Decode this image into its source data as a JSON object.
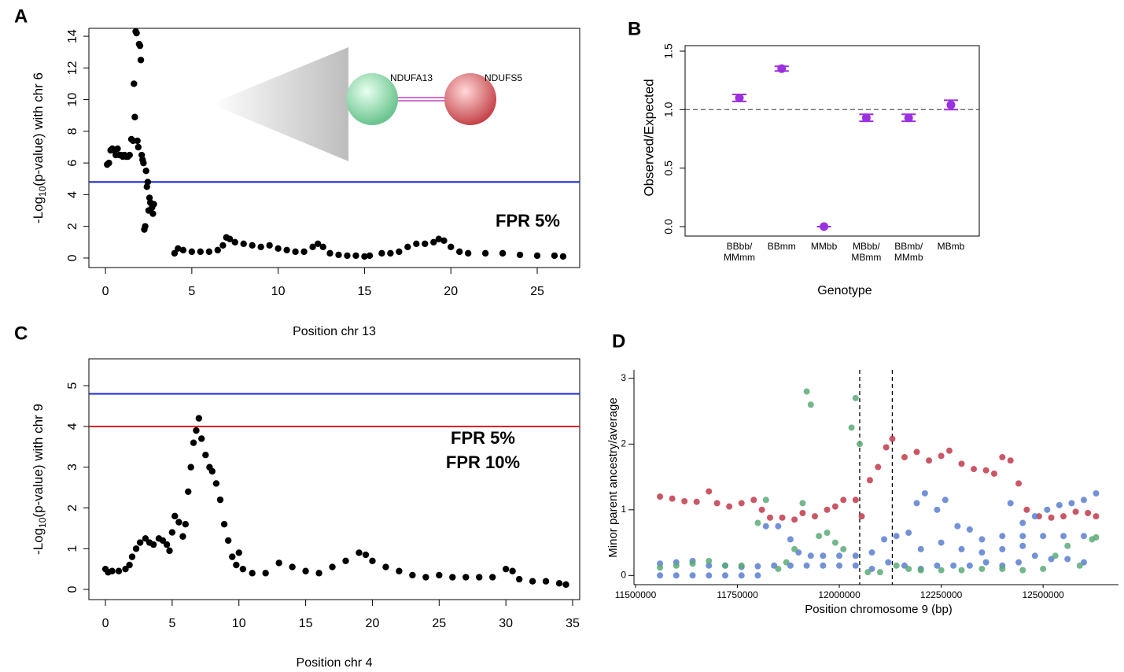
{
  "chart_data": [
    {
      "type": "scatter",
      "panel": "A",
      "xlabel": "Position chr 13",
      "ylabel": [
        "-Log",
        "10",
        "(p-value) with chr 6"
      ],
      "xlim": [
        -0.96,
        27.46
      ],
      "ylim": [
        -0.6,
        14.5
      ],
      "xticks": [
        0,
        5,
        10,
        15,
        20,
        25
      ],
      "yticks": [
        0,
        2,
        4,
        6,
        8,
        10,
        12,
        14
      ],
      "color": "#000000",
      "x": [
        0.1,
        0.2,
        0.3,
        0.4,
        0.5,
        0.6,
        0.7,
        0.8,
        0.9,
        1.0,
        1.1,
        1.2,
        1.3,
        1.4,
        1.5,
        1.6,
        1.65,
        1.7,
        1.75,
        1.8,
        1.85,
        1.9,
        1.95,
        2.0,
        2.05,
        2.1,
        2.15,
        2.2,
        2.25,
        2.3,
        2.35,
        2.4,
        2.45,
        2.5,
        2.55,
        2.6,
        2.7,
        2.75,
        2.8,
        4.0,
        4.2,
        4.5,
        5.0,
        5.5,
        6.0,
        6.5,
        6.8,
        7.0,
        7.2,
        7.5,
        8.0,
        8.5,
        9.0,
        9.5,
        10.0,
        10.5,
        11.0,
        11.5,
        12.0,
        12.3,
        12.6,
        13.0,
        13.5,
        14.0,
        14.5,
        15.0,
        15.3,
        16.0,
        16.5,
        17.0,
        17.5,
        18.0,
        18.5,
        19.0,
        19.3,
        19.6,
        20.0,
        20.5,
        21.0,
        22.0,
        23.0,
        24.0,
        25.0,
        26.0,
        26.5
      ],
      "values": [
        5.9,
        6.0,
        6.8,
        6.9,
        6.8,
        6.5,
        6.9,
        6.5,
        6.5,
        6.4,
        6.5,
        6.4,
        6.4,
        6.5,
        7.5,
        7.4,
        11.0,
        8.9,
        14.3,
        14.2,
        7.4,
        7.0,
        13.5,
        13.4,
        12.5,
        6.5,
        6.2,
        6.0,
        1.8,
        2.0,
        5.5,
        4.5,
        4.8,
        3.0,
        3.8,
        3.5,
        3.2,
        2.8,
        3.4,
        0.3,
        0.6,
        0.5,
        0.4,
        0.4,
        0.4,
        0.5,
        0.8,
        1.3,
        1.2,
        1.0,
        0.9,
        0.8,
        0.7,
        0.8,
        0.6,
        0.5,
        0.4,
        0.4,
        0.7,
        0.9,
        0.7,
        0.3,
        0.2,
        0.15,
        0.15,
        0.1,
        0.15,
        0.3,
        0.3,
        0.4,
        0.7,
        0.9,
        0.9,
        1.0,
        1.2,
        1.1,
        0.7,
        0.4,
        0.3,
        0.3,
        0.3,
        0.2,
        0.15,
        0.15,
        0.1
      ],
      "hlines": [
        {
          "value": 4.8,
          "color": "#1d22dd",
          "label": "FPR 5%"
        }
      ],
      "inset": {
        "nodes": [
          "NDUFA13",
          "NDUFS5"
        ]
      }
    },
    {
      "type": "errorbar",
      "panel": "B",
      "xlabel": "Genotype",
      "ylabel": "Observed/Expected",
      "ylim": [
        -0.081,
        1.547
      ],
      "yticks": [
        {
          "value": 0,
          "label": "0.0"
        },
        0.5,
        {
          "value": 1,
          "label": "1.0"
        },
        1.5
      ],
      "categories": [
        [
          "BBbb/",
          "MMmm"
        ],
        [
          "BBmm"
        ],
        [
          "MMbb"
        ],
        [
          "MBbb/",
          "MBmm"
        ],
        [
          "BBmb/",
          "MMmb"
        ],
        [
          "MBmb"
        ]
      ],
      "values": [
        1.1,
        1.35,
        0.0,
        0.93,
        0.93,
        1.04
      ],
      "errors": [
        0.03,
        0.02,
        0,
        0.03,
        0.03,
        0.04
      ],
      "color": "#9b30e0",
      "reference_line": 1
    },
    {
      "type": "scatter",
      "panel": "C",
      "xlabel": "Position chr 4",
      "ylabel": [
        "-Log",
        "10",
        "(p-value) with chr 9"
      ],
      "xlim": [
        -1.24,
        35.53
      ],
      "ylim": [
        -0.25,
        5.66
      ],
      "xticks": [
        0,
        5,
        10,
        15,
        20,
        25,
        30,
        35
      ],
      "yticks": [
        0,
        1,
        2,
        3,
        4,
        5
      ],
      "color": "#000000",
      "x": [
        0,
        0.2,
        0.5,
        1,
        1.5,
        1.8,
        2,
        2.3,
        2.6,
        3,
        3.3,
        3.6,
        4,
        4.3,
        4.6,
        4.8,
        5,
        5.2,
        5.5,
        5.8,
        6,
        6.2,
        6.4,
        6.6,
        6.8,
        7,
        7.2,
        7.5,
        7.8,
        8,
        8.3,
        8.6,
        8.9,
        9.2,
        9.5,
        9.8,
        10,
        10.3,
        11,
        12,
        13,
        14,
        15,
        16,
        17,
        18,
        19,
        19.5,
        20,
        21,
        22,
        23,
        24,
        25,
        26,
        27,
        28,
        29,
        30,
        30.5,
        31,
        32,
        33,
        34,
        34.5
      ],
      "values": [
        0.5,
        0.42,
        0.45,
        0.45,
        0.5,
        0.6,
        0.8,
        1.0,
        1.15,
        1.25,
        1.15,
        1.1,
        1.25,
        1.2,
        1.1,
        0.95,
        1.4,
        1.8,
        1.65,
        1.3,
        1.6,
        2.4,
        3.0,
        3.6,
        3.9,
        4.2,
        3.7,
        3.3,
        3.0,
        2.9,
        2.6,
        2.2,
        1.6,
        1.2,
        0.8,
        0.6,
        0.9,
        0.5,
        0.4,
        0.4,
        0.65,
        0.55,
        0.45,
        0.4,
        0.55,
        0.7,
        0.9,
        0.85,
        0.7,
        0.55,
        0.45,
        0.35,
        0.3,
        0.35,
        0.3,
        0.3,
        0.3,
        0.3,
        0.5,
        0.45,
        0.25,
        0.2,
        0.2,
        0.15,
        0.12
      ],
      "hlines": [
        {
          "value": 4.8,
          "color": "#1d22dd",
          "label": "FPR 5%"
        },
        {
          "value": 4.0,
          "color": "#e81e1e",
          "label": "FPR 10%"
        }
      ]
    },
    {
      "type": "scatter",
      "panel": "D",
      "xlabel": "Position chromosome 9 (bp)",
      "ylabel": "Minor parent ancestry/average",
      "xlim": [
        11500000,
        12685000
      ],
      "ylim": [
        -0.14,
        3.13
      ],
      "xticks": [
        11500000,
        11750000,
        12000000,
        12250000,
        12500000
      ],
      "yticks": [
        0,
        1,
        2,
        3
      ],
      "vlines": [
        12050000,
        12130000
      ],
      "series": [
        {
          "color": "#c0394b",
          "x": [
            11560000,
            11590000,
            11620000,
            11650000,
            11680000,
            11700000,
            11730000,
            11760000,
            11790000,
            11810000,
            11830000,
            11860000,
            11890000,
            11910000,
            11940000,
            11970000,
            11990000,
            12010000,
            12040000,
            12055000,
            12075000,
            12095000,
            12115000,
            12130000,
            12160000,
            12190000,
            12220000,
            12250000,
            12270000,
            12300000,
            12330000,
            12360000,
            12380000,
            12400000,
            12420000,
            12440000,
            12460000,
            12490000,
            12520000,
            12550000,
            12580000,
            12610000,
            12630000
          ],
          "values": [
            1.2,
            1.17,
            1.13,
            1.12,
            1.28,
            1.1,
            1.05,
            1.1,
            1.15,
            1.0,
            0.88,
            0.88,
            0.85,
            0.95,
            0.9,
            1.0,
            1.05,
            1.15,
            1.15,
            0.9,
            1.45,
            1.65,
            1.95,
            2.08,
            1.8,
            1.88,
            1.75,
            1.82,
            1.9,
            1.7,
            1.62,
            1.6,
            1.55,
            1.8,
            1.75,
            1.4,
            1.0,
            0.9,
            0.88,
            0.9,
            0.97,
            0.95,
            0.9
          ]
        },
        {
          "color": "#5b7fcf",
          "x": [
            11560000,
            11600000,
            11640000,
            11680000,
            11720000,
            11760000,
            11800000,
            11560000,
            11600000,
            11640000,
            11680000,
            11720000,
            11760000,
            11800000,
            11840000,
            11880000,
            11920000,
            11960000,
            12000000,
            12040000,
            12080000,
            12120000,
            12160000,
            12200000,
            12240000,
            12280000,
            12320000,
            12360000,
            12400000,
            12440000,
            12480000,
            12520000,
            12560000,
            12600000,
            11820000,
            11850000,
            11880000,
            11900000,
            11930000,
            11960000,
            12000000,
            12040000,
            12080000,
            12110000,
            12140000,
            12170000,
            12190000,
            12210000,
            12240000,
            12260000,
            12290000,
            12320000,
            12350000,
            12400000,
            12450000,
            12500000,
            12550000,
            12600000,
            12420000,
            12450000,
            12480000,
            12510000,
            12540000,
            12570000,
            12600000,
            12630000,
            12200000,
            12250000,
            12300000,
            12350000,
            12400000,
            12450000
          ],
          "values": [
            0,
            0,
            0,
            0,
            0,
            0,
            0,
            0.18,
            0.2,
            0.22,
            0.15,
            0.15,
            0.13,
            0.14,
            0.15,
            0.15,
            0.15,
            0.15,
            0.15,
            0.15,
            0.1,
            0.2,
            0.15,
            0.1,
            0.15,
            0.15,
            0.15,
            0.2,
            0.15,
            0.2,
            0.3,
            0.25,
            0.25,
            0.2,
            0.75,
            0.75,
            0.55,
            0.35,
            0.3,
            0.3,
            0.3,
            0.3,
            0.35,
            0.55,
            0.6,
            0.65,
            1.1,
            1.25,
            1.0,
            1.15,
            0.75,
            0.7,
            0.55,
            0.6,
            0.6,
            0.6,
            0.6,
            0.6,
            1.1,
            0.8,
            0.9,
            1.0,
            1.07,
            1.1,
            1.15,
            1.25,
            0.4,
            0.5,
            0.4,
            0.35,
            0.4,
            0.45
          ]
        },
        {
          "color": "#5aaa78",
          "x": [
            11560000,
            11600000,
            11640000,
            11680000,
            11720000,
            11760000,
            11800000,
            11820000,
            11850000,
            11870000,
            11890000,
            11910000,
            11920000,
            11930000,
            11950000,
            11970000,
            11990000,
            12010000,
            12030000,
            12040000,
            12050000,
            12070000,
            12100000,
            12140000,
            12170000,
            12200000,
            12250000,
            12300000,
            12350000,
            12400000,
            12450000,
            12500000,
            12530000,
            12560000,
            12590000,
            12620000,
            12630000
          ],
          "values": [
            0.12,
            0.15,
            0.18,
            0.22,
            0.15,
            0.15,
            0.8,
            1.15,
            0.1,
            0.2,
            0.4,
            1.1,
            2.8,
            2.6,
            0.6,
            0.65,
            0.5,
            0.4,
            2.25,
            2.7,
            2.0,
            0.05,
            0.05,
            0.15,
            0.1,
            0.08,
            0.08,
            0.08,
            0.1,
            0.1,
            0.08,
            0.1,
            0.3,
            0.45,
            0.15,
            0.55,
            0.58
          ]
        }
      ]
    }
  ]
}
